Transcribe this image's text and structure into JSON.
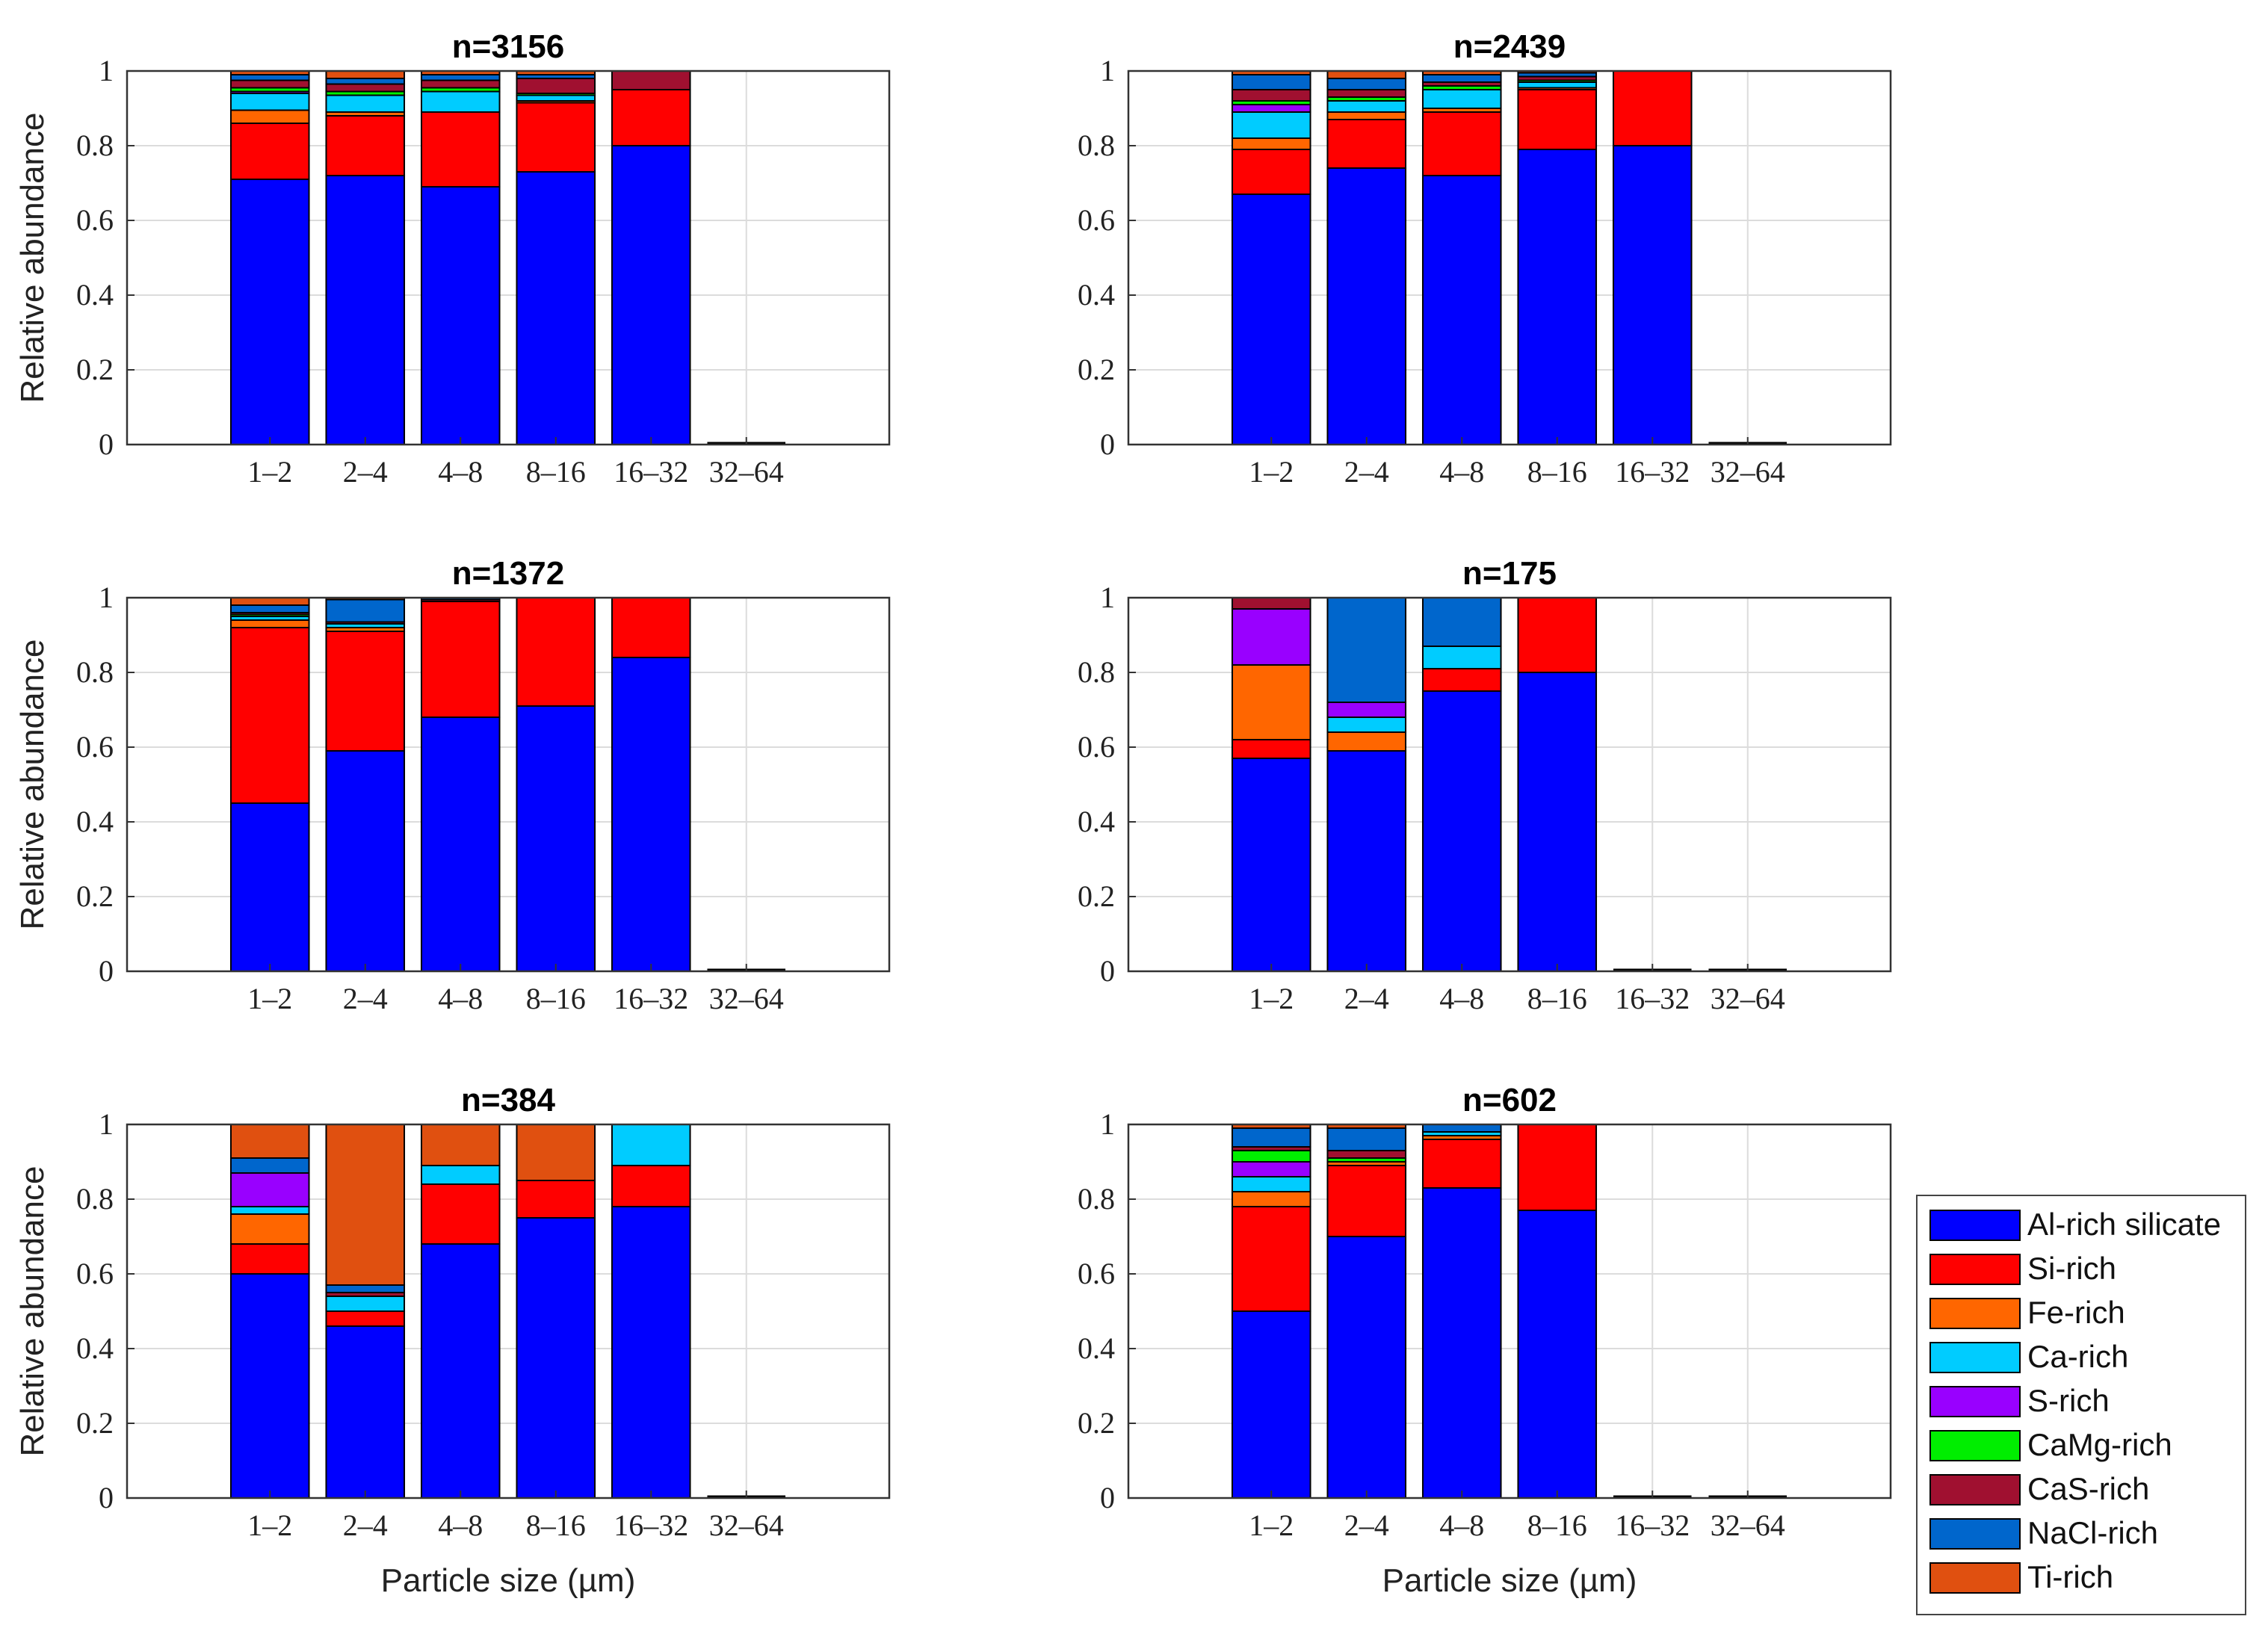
{
  "chart_data": {
    "type": "bar",
    "stacked": true,
    "ylabel": "Relative abundance",
    "xlabel": "Particle size (µm)",
    "ylim": [
      0,
      1
    ],
    "yticks": [
      "0",
      "0.2",
      "0.4",
      "0.6",
      "0.8",
      "1"
    ],
    "grid": true,
    "categories": [
      "1–2",
      "2–4",
      "4–8",
      "8–16",
      "16–32",
      "32–64"
    ],
    "legend_position": "bottom-right",
    "series": [
      {
        "name": "Al-rich silicate",
        "color": "#0000ff"
      },
      {
        "name": "Si-rich",
        "color": "#ff0000"
      },
      {
        "name": "Fe-rich",
        "color": "#ff6600"
      },
      {
        "name": "Ca-rich",
        "color": "#00ccff"
      },
      {
        "name": "S-rich",
        "color": "#9900ff"
      },
      {
        "name": "CaMg-rich",
        "color": "#00ee00"
      },
      {
        "name": "CaS-rich",
        "color": "#a01030"
      },
      {
        "name": "NaCl-rich",
        "color": "#0066cc"
      },
      {
        "name": "Ti-rich",
        "color": "#e05010"
      }
    ],
    "panels": [
      {
        "title": "n=3156",
        "bars": [
          [
            0.71,
            0.15,
            0.035,
            0.045,
            0.005,
            0.01,
            0.02,
            0.015,
            0.01
          ],
          [
            0.72,
            0.16,
            0.01,
            0.045,
            0.0,
            0.01,
            0.02,
            0.015,
            0.02
          ],
          [
            0.69,
            0.2,
            0.0,
            0.055,
            0.0,
            0.01,
            0.02,
            0.015,
            0.01
          ],
          [
            0.73,
            0.185,
            0.005,
            0.015,
            0.0,
            0.005,
            0.04,
            0.01,
            0.01
          ],
          [
            0.8,
            0.15,
            0.0,
            0.0,
            0.0,
            0.0,
            0.05,
            0.0,
            0.0
          ],
          [
            0,
            0,
            0,
            0,
            0,
            0,
            0,
            0,
            0
          ]
        ]
      },
      {
        "title": "n=2439",
        "bars": [
          [
            0.67,
            0.12,
            0.03,
            0.07,
            0.02,
            0.01,
            0.03,
            0.04,
            0.01
          ],
          [
            0.74,
            0.13,
            0.02,
            0.03,
            0.0,
            0.01,
            0.02,
            0.03,
            0.02
          ],
          [
            0.72,
            0.17,
            0.01,
            0.05,
            0.0,
            0.01,
            0.01,
            0.02,
            0.01
          ],
          [
            0.79,
            0.16,
            0.005,
            0.015,
            0.0,
            0.005,
            0.01,
            0.01,
            0.005
          ],
          [
            0.8,
            0.2,
            0,
            0,
            0,
            0,
            0,
            0,
            0
          ],
          [
            0,
            0,
            0,
            0,
            0,
            0,
            0,
            0,
            0
          ]
        ]
      },
      {
        "title": "n=1372",
        "bars": [
          [
            0.45,
            0.47,
            0.02,
            0.01,
            0.0,
            0.005,
            0.005,
            0.02,
            0.02
          ],
          [
            0.59,
            0.32,
            0.01,
            0.01,
            0.0,
            0.0,
            0.005,
            0.06,
            0.005
          ],
          [
            0.68,
            0.31,
            0.0,
            0.0,
            0.0,
            0.0,
            0.005,
            0.005,
            0.0
          ],
          [
            0.71,
            0.29,
            0,
            0,
            0,
            0,
            0,
            0,
            0
          ],
          [
            0.84,
            0.16,
            0,
            0,
            0,
            0,
            0,
            0,
            0
          ],
          [
            0,
            0,
            0,
            0,
            0,
            0,
            0,
            0,
            0
          ]
        ]
      },
      {
        "title": "n=175",
        "bars": [
          [
            0.57,
            0.05,
            0.2,
            0.0,
            0.15,
            0.0,
            0.03,
            0.0,
            0.0
          ],
          [
            0.59,
            0.0,
            0.05,
            0.04,
            0.04,
            0.0,
            0.0,
            0.28,
            0.0
          ],
          [
            0.75,
            0.06,
            0.0,
            0.06,
            0.0,
            0.0,
            0.0,
            0.13,
            0.0
          ],
          [
            0.8,
            0.2,
            0,
            0,
            0,
            0,
            0,
            0,
            0
          ],
          [
            0,
            0,
            0,
            0,
            0,
            0,
            0,
            0,
            0
          ],
          [
            0,
            0,
            0,
            0,
            0,
            0,
            0,
            0,
            0
          ]
        ]
      },
      {
        "title": "n=384",
        "bars": [
          [
            0.6,
            0.08,
            0.08,
            0.02,
            0.09,
            0.0,
            0.0,
            0.04,
            0.09
          ],
          [
            0.46,
            0.04,
            0.0,
            0.04,
            0.0,
            0.0,
            0.01,
            0.02,
            0.43
          ],
          [
            0.68,
            0.16,
            0.0,
            0.05,
            0.0,
            0.0,
            0.0,
            0.0,
            0.11
          ],
          [
            0.75,
            0.1,
            0.0,
            0.0,
            0.0,
            0.0,
            0.0,
            0.0,
            0.15
          ],
          [
            0.78,
            0.11,
            0.0,
            0.11,
            0.0,
            0.0,
            0.0,
            0.0,
            0.0
          ],
          [
            0,
            0,
            0,
            0,
            0,
            0,
            0,
            0,
            0
          ]
        ]
      },
      {
        "title": "n=602",
        "bars": [
          [
            0.5,
            0.28,
            0.04,
            0.04,
            0.04,
            0.03,
            0.01,
            0.05,
            0.01
          ],
          [
            0.7,
            0.19,
            0.01,
            0.0,
            0.0,
            0.01,
            0.02,
            0.06,
            0.01
          ],
          [
            0.83,
            0.13,
            0.01,
            0.01,
            0.0,
            0.0,
            0.0,
            0.02,
            0.0
          ],
          [
            0.77,
            0.23,
            0,
            0,
            0,
            0,
            0,
            0,
            0
          ],
          [
            0,
            0,
            0,
            0,
            0,
            0,
            0,
            0,
            0
          ],
          [
            0,
            0,
            0,
            0,
            0,
            0,
            0,
            0,
            0
          ]
        ]
      }
    ]
  }
}
